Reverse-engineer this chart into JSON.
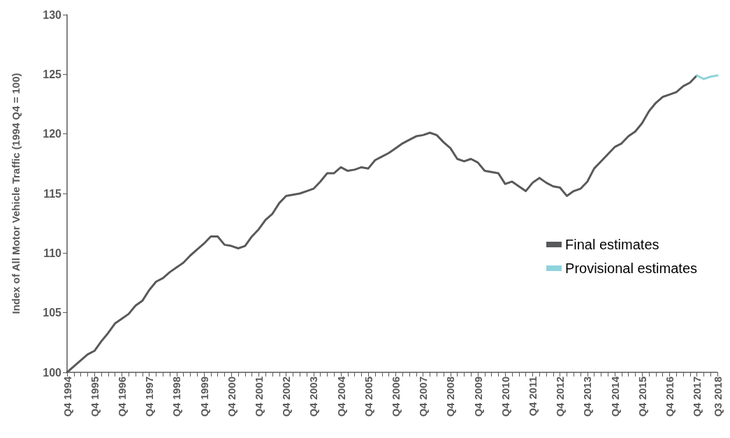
{
  "chart_data": {
    "type": "line",
    "ylabel": "Index of All Motor Vehicle Traffic (1994 Q4 = 100)",
    "categories": [
      "Q4 1994",
      null,
      null,
      null,
      "Q4 1995",
      null,
      null,
      null,
      "Q4 1996",
      null,
      null,
      null,
      "Q4 1997",
      null,
      null,
      null,
      "Q4 1998",
      null,
      null,
      null,
      "Q4 1999",
      null,
      null,
      null,
      "Q4 2000",
      null,
      null,
      null,
      "Q4 2001",
      null,
      null,
      null,
      "Q4 2002",
      null,
      null,
      null,
      "Q4 2003",
      null,
      null,
      null,
      "Q4 2004",
      null,
      null,
      null,
      "Q4 2005",
      null,
      null,
      null,
      "Q4 2006",
      null,
      null,
      null,
      "Q4 2007",
      null,
      null,
      null,
      "Q4 2008",
      null,
      null,
      null,
      "Q4 2009",
      null,
      null,
      null,
      "Q4 2010",
      null,
      null,
      null,
      "Q4 2011",
      null,
      null,
      null,
      "Q4 2012",
      null,
      null,
      null,
      "Q4 2013",
      null,
      null,
      null,
      "Q4 2014",
      null,
      null,
      null,
      "Q4 2015",
      null,
      null,
      null,
      "Q4 2016",
      null,
      null,
      null,
      "Q4 2017",
      null,
      null,
      "Q3 2018"
    ],
    "series": [
      {
        "name": "Final estimates",
        "color": "#58595b",
        "values": [
          100.0,
          100.5,
          101.0,
          101.5,
          101.8,
          102.6,
          103.3,
          104.1,
          104.5,
          104.9,
          105.6,
          106.0,
          106.9,
          107.6,
          107.9,
          108.4,
          108.8,
          109.2,
          109.8,
          110.3,
          110.8,
          111.4,
          111.4,
          110.7,
          110.6,
          110.4,
          110.6,
          111.4,
          112.0,
          112.8,
          113.3,
          114.2,
          114.8,
          114.9,
          115.0,
          115.2,
          115.4,
          116.0,
          116.7,
          116.7,
          117.2,
          116.9,
          117.0,
          117.2,
          117.1,
          117.8,
          118.1,
          118.4,
          118.8,
          119.2,
          119.5,
          119.8,
          119.9,
          120.1,
          119.9,
          119.3,
          118.8,
          117.9,
          117.7,
          117.9,
          117.6,
          116.9,
          116.8,
          116.7,
          115.8,
          116.0,
          115.6,
          115.2,
          115.9,
          116.3,
          115.9,
          115.6,
          115.5,
          114.8,
          115.2,
          115.4,
          116.0,
          117.1,
          117.7,
          118.3,
          118.9,
          119.2,
          119.8,
          120.2,
          120.9,
          121.9,
          122.6,
          123.1,
          123.3,
          123.5,
          124.0,
          124.3,
          124.9,
          null,
          null,
          null
        ]
      },
      {
        "name": "Provisional estimates",
        "color": "#8fd3dc",
        "values": [
          null,
          null,
          null,
          null,
          null,
          null,
          null,
          null,
          null,
          null,
          null,
          null,
          null,
          null,
          null,
          null,
          null,
          null,
          null,
          null,
          null,
          null,
          null,
          null,
          null,
          null,
          null,
          null,
          null,
          null,
          null,
          null,
          null,
          null,
          null,
          null,
          null,
          null,
          null,
          null,
          null,
          null,
          null,
          null,
          null,
          null,
          null,
          null,
          null,
          null,
          null,
          null,
          null,
          null,
          null,
          null,
          null,
          null,
          null,
          null,
          null,
          null,
          null,
          null,
          null,
          null,
          null,
          null,
          null,
          null,
          null,
          null,
          null,
          null,
          null,
          null,
          null,
          null,
          null,
          null,
          null,
          null,
          null,
          null,
          null,
          null,
          null,
          null,
          null,
          null,
          null,
          null,
          124.9,
          124.6,
          124.8,
          124.9
        ]
      }
    ],
    "ylim": [
      100,
      130
    ],
    "yticks": [
      100,
      105,
      110,
      115,
      120,
      125,
      130
    ],
    "grid": false,
    "legend": "right",
    "marker": "none",
    "line_style": "solid"
  }
}
